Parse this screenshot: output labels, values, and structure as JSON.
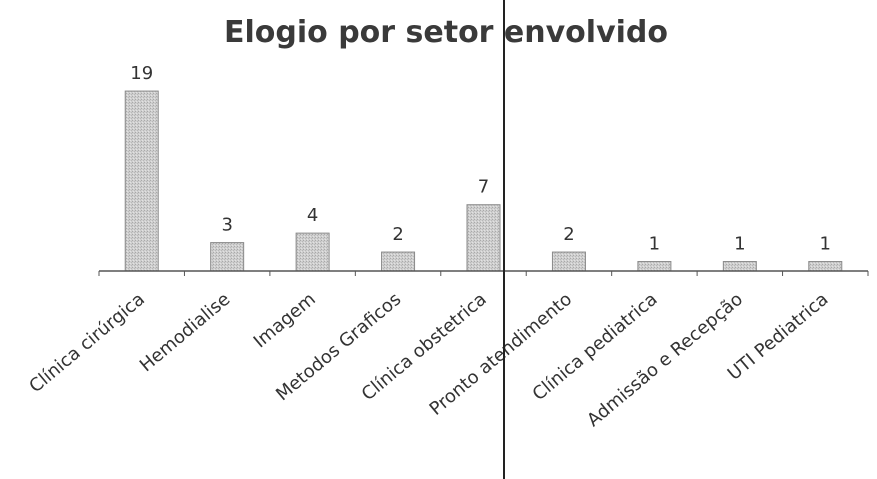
{
  "chart_data": {
    "type": "bar",
    "title": "Elogio por setor envolvido",
    "xlabel": "",
    "ylabel": "",
    "categories": [
      "Clínica cirúrgica",
      "Hemodialise",
      "Imagem",
      "Metodos Graficos",
      "Clínica obstetrica",
      "Pronto atendimento",
      "Clínica pediatrica",
      "Admissão e Recepção",
      "UTI Pediatrica"
    ],
    "values": [
      19,
      3,
      4,
      2,
      7,
      2,
      1,
      1,
      1
    ],
    "ylim": [
      0,
      20
    ],
    "grid": false,
    "legend": "none",
    "colors": {
      "bar": "#c8c8c8",
      "bar_stroke": "#8a8a8a",
      "axis": "#555555",
      "text": "#333333"
    }
  }
}
